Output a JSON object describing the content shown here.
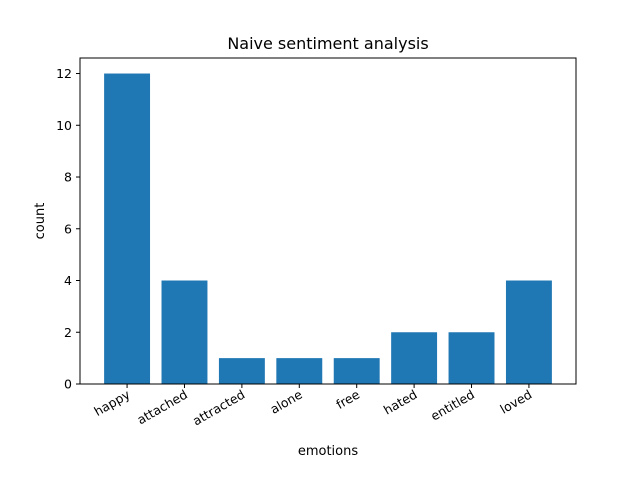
{
  "chart_data": {
    "type": "bar",
    "title": "Naive sentiment analysis",
    "xlabel": "emotions",
    "ylabel": "count",
    "categories": [
      "happy",
      "attached",
      "attracted",
      "alone",
      "free",
      "hated",
      "entitled",
      "loved"
    ],
    "values": [
      12,
      4,
      1,
      1,
      1,
      2,
      2,
      4
    ],
    "ylim": [
      0,
      12.6
    ],
    "yticks": [
      0,
      2,
      4,
      6,
      8,
      10,
      12
    ],
    "grid": false,
    "legend": "none",
    "bar_color": "#1f77b4",
    "x_tick_rotation": 30
  }
}
